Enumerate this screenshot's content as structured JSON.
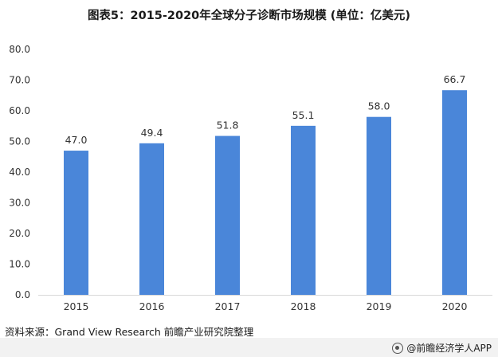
{
  "title": "图表5：2015-2020年全球分子诊断市场规模 (单位：亿美元)",
  "source": "资料来源：Grand View Research 前瞻产业研究院整理",
  "brand": "@前瞻经济学人APP",
  "colors": {
    "bar": "#4a86d9",
    "axis": "#d9d9d9",
    "text": "#333333"
  },
  "chart_data": {
    "type": "bar",
    "categories": [
      "2015",
      "2016",
      "2017",
      "2018",
      "2019",
      "2020"
    ],
    "values": [
      47.0,
      49.4,
      51.8,
      55.1,
      58.0,
      66.7
    ],
    "data_labels": [
      "47.0",
      "49.4",
      "51.8",
      "55.1",
      "58.0",
      "66.7"
    ],
    "ylim": [
      0,
      80
    ],
    "yticks": [
      "0.0",
      "10.0",
      "20.0",
      "30.0",
      "40.0",
      "50.0",
      "60.0",
      "70.0",
      "80.0"
    ],
    "grid": false,
    "title": "图表5：2015-2020年全球分子诊断市场规模 (单位：亿美元)",
    "xlabel": "",
    "ylabel": ""
  }
}
